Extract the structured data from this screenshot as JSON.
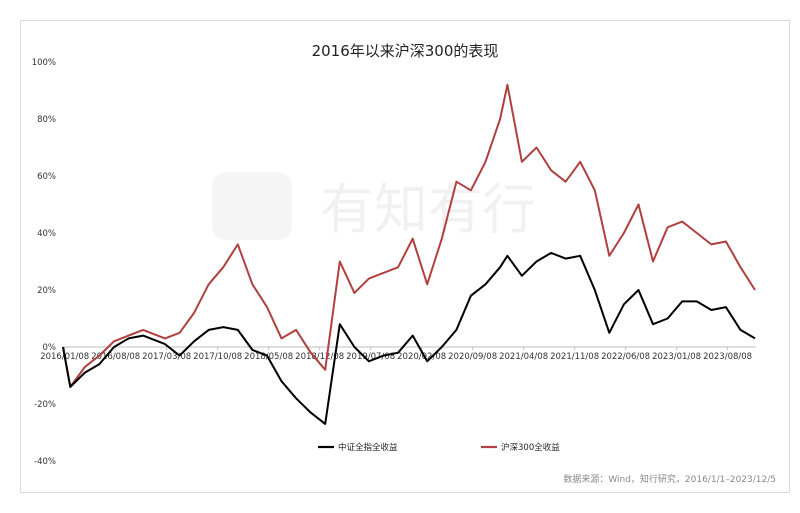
{
  "chart_data": {
    "type": "line",
    "title": "2016年以来沪深300的表现",
    "source": "数据来源：Wind，知行研究，2016/1/1–2023/12/5",
    "watermark": "有知有行",
    "xlabel": "",
    "ylabel": "",
    "ylim": [
      -40,
      100
    ],
    "y_unit": "%",
    "y_ticks": [
      "100%",
      "80%",
      "60%",
      "40%",
      "20%",
      "0%",
      "-20%",
      "-40%"
    ],
    "x_ticks": [
      "2016/01/08",
      "2016/08/08",
      "2017/03/08",
      "2017/10/08",
      "2018/05/08",
      "2018/12/08",
      "2019/07/08",
      "2020/02/08",
      "2020/09/08",
      "2021/04/08",
      "2021/11/08",
      "2022/06/08",
      "2023/01/08",
      "2023/08/08"
    ],
    "grid": false,
    "legend_position": "bottom",
    "colors": {
      "csi_all": "#000000",
      "hs300": "#b0403f"
    },
    "x": [
      "2016/01",
      "2016/02",
      "2016/04",
      "2016/06",
      "2016/08",
      "2016/10",
      "2016/12",
      "2017/03",
      "2017/05",
      "2017/07",
      "2017/09",
      "2017/11",
      "2018/01",
      "2018/03",
      "2018/05",
      "2018/07",
      "2018/09",
      "2018/11",
      "2019/01",
      "2019/03",
      "2019/05",
      "2019/07",
      "2019/09",
      "2019/11",
      "2020/01",
      "2020/03",
      "2020/05",
      "2020/07",
      "2020/09",
      "2020/11",
      "2021/01",
      "2021/02",
      "2021/04",
      "2021/06",
      "2021/08",
      "2021/10",
      "2021/12",
      "2022/02",
      "2022/04",
      "2022/06",
      "2022/08",
      "2022/10",
      "2022/12",
      "2023/02",
      "2023/04",
      "2023/06",
      "2023/08",
      "2023/10",
      "2023/12"
    ],
    "series": [
      {
        "name": "中证全指全收益",
        "values": [
          0,
          -14,
          -9,
          -6,
          0,
          3,
          4,
          1,
          -3,
          2,
          6,
          7,
          6,
          -1,
          -3,
          -12,
          -18,
          -23,
          -27,
          8,
          0,
          -5,
          -3,
          -2,
          4,
          -5,
          0,
          6,
          18,
          22,
          28,
          32,
          25,
          30,
          33,
          31,
          32,
          20,
          5,
          15,
          20,
          8,
          10,
          16,
          16,
          13,
          14,
          6,
          3
        ]
      },
      {
        "name": "沪深300全收益",
        "values": [
          0,
          -14,
          -7,
          -3,
          2,
          4,
          6,
          3,
          5,
          12,
          22,
          28,
          36,
          22,
          14,
          3,
          6,
          -2,
          -8,
          30,
          19,
          24,
          26,
          28,
          38,
          22,
          38,
          58,
          55,
          65,
          80,
          92,
          65,
          70,
          62,
          58,
          65,
          55,
          32,
          40,
          50,
          30,
          42,
          44,
          40,
          36,
          37,
          28,
          20
        ]
      }
    ]
  }
}
